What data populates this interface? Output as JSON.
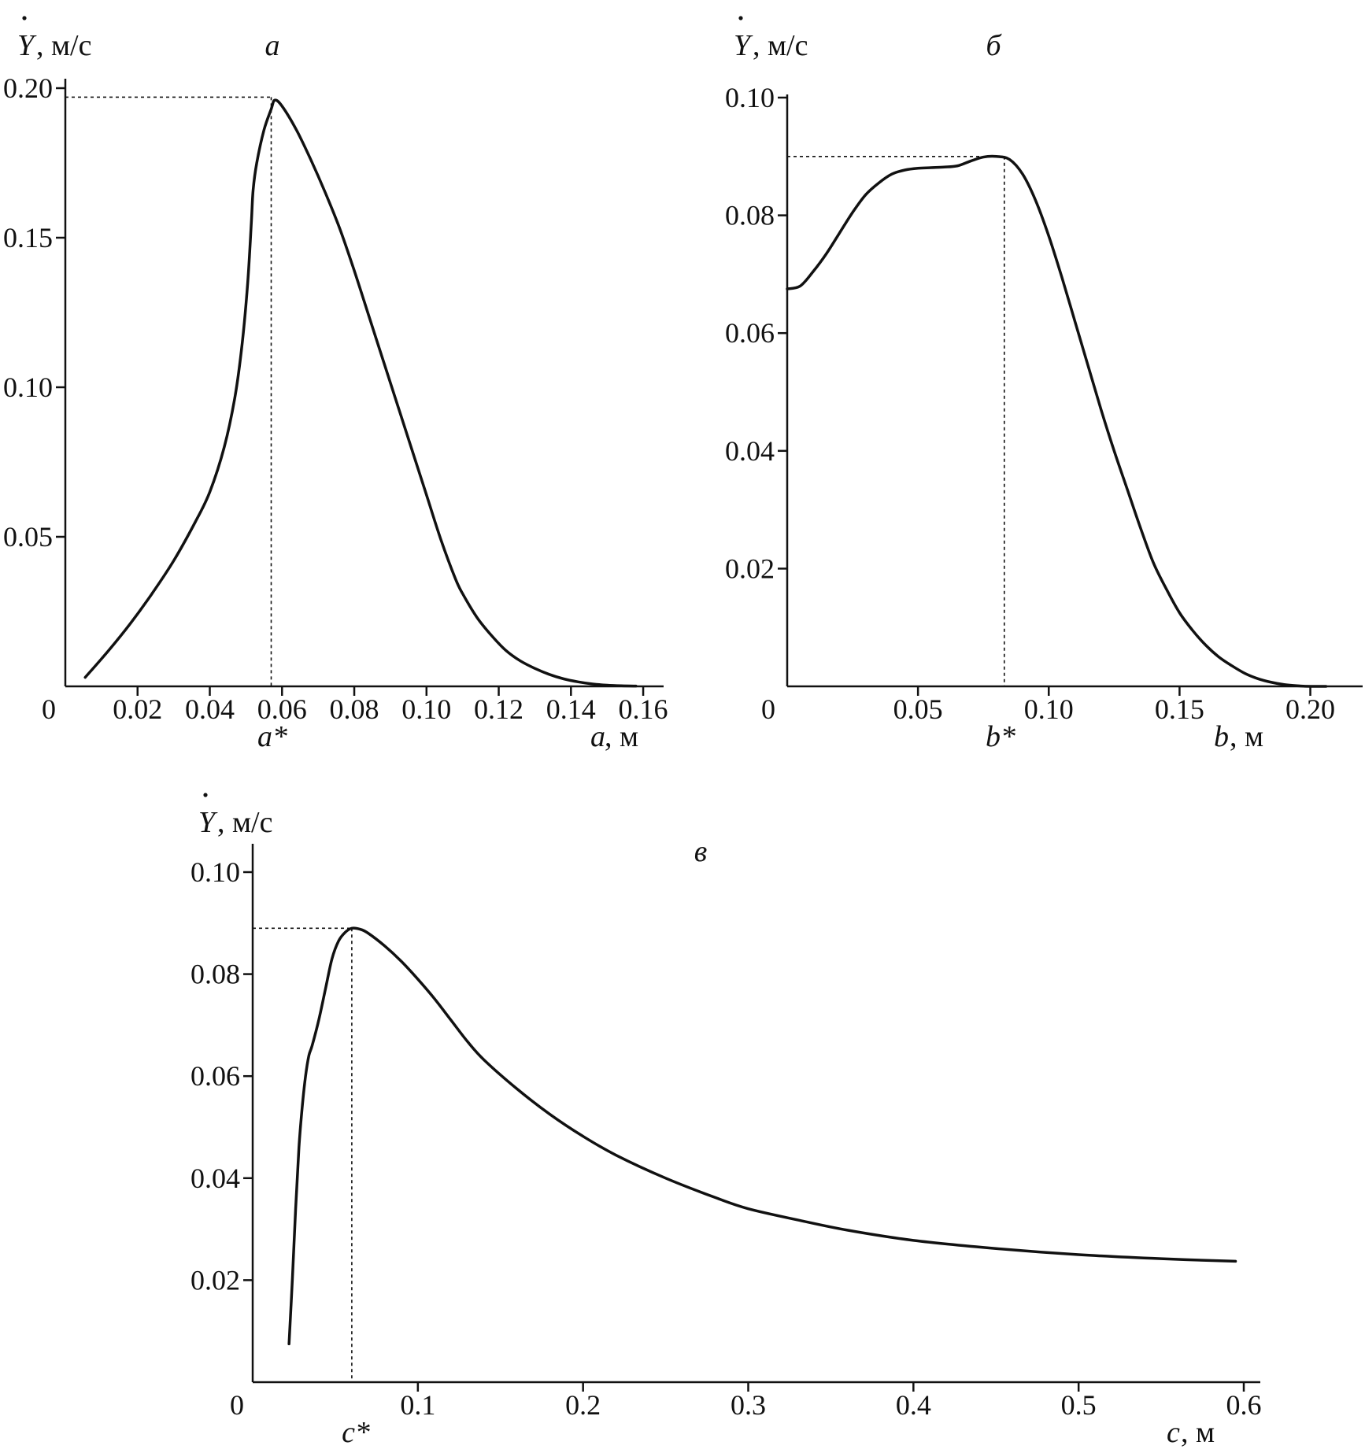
{
  "chart_data": [
    {
      "panel_label": "а",
      "type": "line",
      "ylabel_symbol": "Y",
      "ylabel_unit": ", м/с",
      "xlabel_symbol": "a",
      "xlabel_unit": ", м",
      "origin_label": "0",
      "optimum_label": "a*",
      "xlim": [
        0,
        0.165
      ],
      "ylim": [
        0,
        0.2
      ],
      "xticks": [
        0.02,
        0.04,
        0.06,
        0.08,
        0.1,
        0.12,
        0.14,
        0.16
      ],
      "xtick_labels": [
        "0.02",
        "0.04",
        "0.06",
        "0.08",
        "0.10",
        "0.12",
        "0.14",
        "0.16"
      ],
      "yticks": [
        0.05,
        0.1,
        0.15,
        0.2
      ],
      "ytick_labels": [
        "0.05",
        "0.10",
        "0.15",
        "0.20"
      ],
      "optimum": {
        "x": 0.057,
        "y": 0.197
      },
      "series": [
        {
          "x": [
            0.0055,
            0.012,
            0.018,
            0.024,
            0.03,
            0.036,
            0.04,
            0.044,
            0.047,
            0.049,
            0.0505,
            0.0515,
            0.052,
            0.053,
            0.055,
            0.057,
            0.058,
            0.06,
            0.064,
            0.068,
            0.072,
            0.076,
            0.08,
            0.084,
            0.088,
            0.092,
            0.096,
            0.1,
            0.104,
            0.108,
            0.11,
            0.114,
            0.118,
            0.122,
            0.126,
            0.13,
            0.134,
            0.138,
            0.142,
            0.146,
            0.15,
            0.154,
            0.158
          ],
          "y": [
            0.003,
            0.012,
            0.021,
            0.031,
            0.042,
            0.055,
            0.065,
            0.08,
            0.097,
            0.115,
            0.135,
            0.155,
            0.166,
            0.175,
            0.186,
            0.193,
            0.196,
            0.194,
            0.186,
            0.176,
            0.165,
            0.153,
            0.139,
            0.124,
            0.109,
            0.094,
            0.079,
            0.064,
            0.049,
            0.036,
            0.031,
            0.023,
            0.017,
            0.012,
            0.0085,
            0.006,
            0.004,
            0.0025,
            0.0015,
            0.0008,
            0.0004,
            0.0002,
            0.0001
          ]
        }
      ]
    },
    {
      "panel_label": "б",
      "type": "line",
      "ylabel_symbol": "Y",
      "ylabel_unit": ", м/с",
      "xlabel_symbol": "b",
      "xlabel_unit": ", м",
      "origin_label": "0",
      "optimum_label": "b*",
      "xlim": [
        0,
        0.22
      ],
      "ylim": [
        0,
        0.1
      ],
      "xticks": [
        0.05,
        0.1,
        0.15,
        0.2
      ],
      "xtick_labels": [
        "0.05",
        "0.10",
        "0.15",
        "0.20"
      ],
      "yticks": [
        0.02,
        0.04,
        0.06,
        0.08,
        0.1
      ],
      "ytick_labels": [
        "0.02",
        "0.04",
        "0.06",
        "0.08",
        "0.10"
      ],
      "optimum": {
        "x": 0.083,
        "y": 0.09
      },
      "series": [
        {
          "x": [
            0,
            0.005,
            0.01,
            0.015,
            0.02,
            0.025,
            0.03,
            0.035,
            0.04,
            0.045,
            0.05,
            0.055,
            0.06,
            0.065,
            0.07,
            0.075,
            0.08,
            0.085,
            0.09,
            0.095,
            0.1,
            0.105,
            0.11,
            0.115,
            0.12,
            0.125,
            0.13,
            0.135,
            0.14,
            0.145,
            0.15,
            0.155,
            0.16,
            0.165,
            0.17,
            0.175,
            0.18,
            0.185,
            0.19,
            0.195,
            0.2,
            0.206
          ],
          "y": [
            0.0675,
            0.068,
            0.0705,
            0.0735,
            0.077,
            0.0805,
            0.0835,
            0.0855,
            0.087,
            0.0877,
            0.088,
            0.0881,
            0.0882,
            0.0884,
            0.0892,
            0.0899,
            0.09,
            0.0895,
            0.087,
            0.0825,
            0.0765,
            0.0695,
            0.062,
            0.0545,
            0.047,
            0.04,
            0.0335,
            0.027,
            0.021,
            0.0165,
            0.0125,
            0.0095,
            0.007,
            0.005,
            0.0035,
            0.0022,
            0.0013,
            0.0007,
            0.0003,
            0.0001,
            0.0,
            0.0
          ]
        }
      ]
    },
    {
      "panel_label": "в",
      "type": "line",
      "ylabel_symbol": "Y",
      "ylabel_unit": ", м/с",
      "xlabel_symbol": "c",
      "xlabel_unit": ", м",
      "origin_label": "0",
      "optimum_label": "c*",
      "xlim": [
        0,
        0.61
      ],
      "ylim": [
        0,
        0.1
      ],
      "xticks": [
        0.1,
        0.2,
        0.3,
        0.4,
        0.5,
        0.6
      ],
      "xtick_labels": [
        "0.1",
        "0.2",
        "0.3",
        "0.4",
        "0.5",
        "0.6"
      ],
      "yticks": [
        0.02,
        0.04,
        0.06,
        0.08,
        0.1
      ],
      "ytick_labels": [
        "0.02",
        "0.04",
        "0.06",
        "0.08",
        "0.10"
      ],
      "optimum": {
        "x": 0.06,
        "y": 0.089
      },
      "series": [
        {
          "x": [
            0.022,
            0.024,
            0.026,
            0.028,
            0.03,
            0.032,
            0.034,
            0.036,
            0.04,
            0.044,
            0.048,
            0.052,
            0.056,
            0.06,
            0.065,
            0.07,
            0.08,
            0.09,
            0.1,
            0.11,
            0.12,
            0.13,
            0.14,
            0.16,
            0.18,
            0.2,
            0.22,
            0.25,
            0.28,
            0.3,
            0.33,
            0.36,
            0.4,
            0.45,
            0.5,
            0.55,
            0.595
          ],
          "y": [
            0.0075,
            0.02,
            0.034,
            0.046,
            0.054,
            0.06,
            0.064,
            0.066,
            0.071,
            0.077,
            0.083,
            0.0865,
            0.0882,
            0.089,
            0.0888,
            0.088,
            0.0855,
            0.0825,
            0.079,
            0.0752,
            0.071,
            0.0668,
            0.0632,
            0.0575,
            0.0525,
            0.0482,
            0.0445,
            0.04,
            0.0362,
            0.034,
            0.0318,
            0.0298,
            0.0278,
            0.0262,
            0.025,
            0.0242,
            0.0237
          ]
        }
      ]
    }
  ]
}
